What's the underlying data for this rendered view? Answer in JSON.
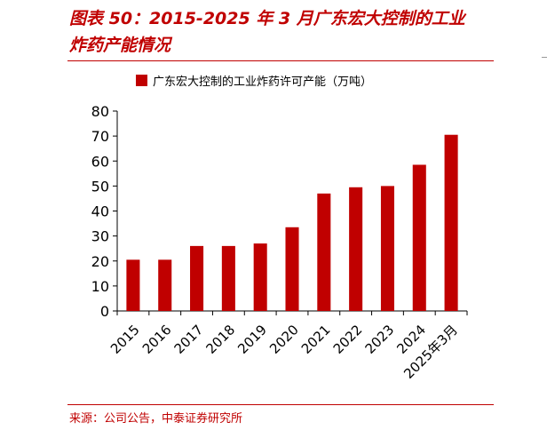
{
  "figure": {
    "title_line1": "图表 50：2015-2025 年 3 月广东宏大控制的工业",
    "title_line2": "炸药产能情况",
    "source": "来源：公司公告，中泰证券研究所"
  },
  "colors": {
    "accent": "#c00000",
    "bar": "#c00000",
    "axis": "#000000"
  },
  "chart_data": {
    "type": "bar",
    "categories": [
      "2015",
      "2016",
      "2017",
      "2018",
      "2019",
      "2020",
      "2021",
      "2022",
      "2023",
      "2024",
      "2025年3月"
    ],
    "series": [
      {
        "name": "广东宏大控制的工业炸药许可产能（万吨）",
        "values": [
          20.5,
          20.5,
          26,
          26,
          27,
          33.5,
          47,
          49.5,
          50,
          58.5,
          70.5
        ]
      }
    ],
    "ylim": [
      0,
      80
    ],
    "yticks": [
      "0",
      "10",
      "20",
      "30",
      "40",
      "50",
      "60",
      "70",
      "80"
    ],
    "grid": false,
    "legend_position": "top"
  }
}
